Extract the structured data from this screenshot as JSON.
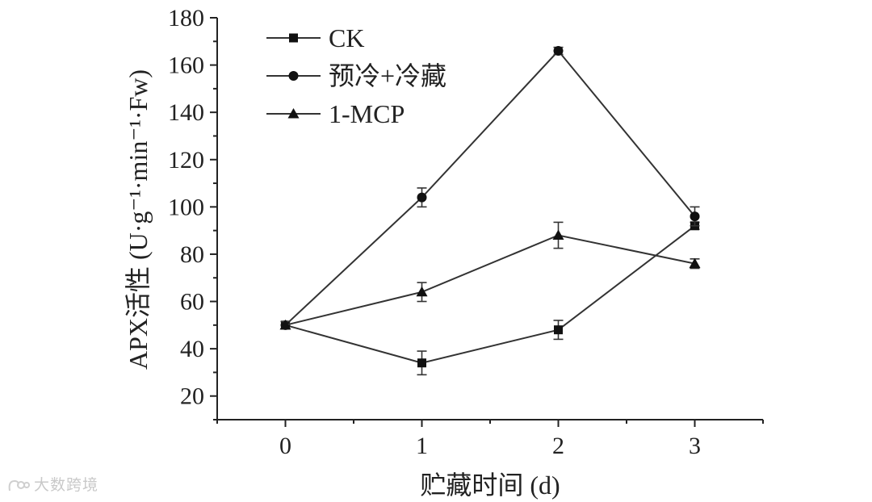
{
  "chart_data": {
    "type": "line",
    "x": [
      0,
      1,
      2,
      3
    ],
    "xlabel": "贮藏时间 (d)",
    "ylabel": "APX活性 (U·g⁻¹·min⁻¹·Fw)",
    "xlim": [
      -0.5,
      3.5
    ],
    "ylim": [
      10,
      180
    ],
    "x_ticks": [
      "0",
      "1",
      "2",
      "3"
    ],
    "y_ticks": [
      "20",
      "40",
      "60",
      "80",
      "100",
      "120",
      "140",
      "160",
      "180"
    ],
    "grid": false,
    "legend_position": "top-left",
    "series": [
      {
        "name": "CK",
        "marker": "square",
        "values": [
          50,
          34,
          48,
          92
        ],
        "errors": [
          1.5,
          5,
          4,
          1.5
        ]
      },
      {
        "name": "预冷+冷藏",
        "marker": "circle",
        "values": [
          50,
          104,
          166,
          96
        ],
        "errors": [
          1.5,
          4,
          1.5,
          4
        ]
      },
      {
        "name": "1-MCP",
        "marker": "triangle",
        "values": [
          50,
          64,
          88,
          76
        ],
        "errors": [
          1.5,
          4,
          5.5,
          2
        ]
      }
    ]
  },
  "watermark": {
    "text": "大数跨境"
  }
}
